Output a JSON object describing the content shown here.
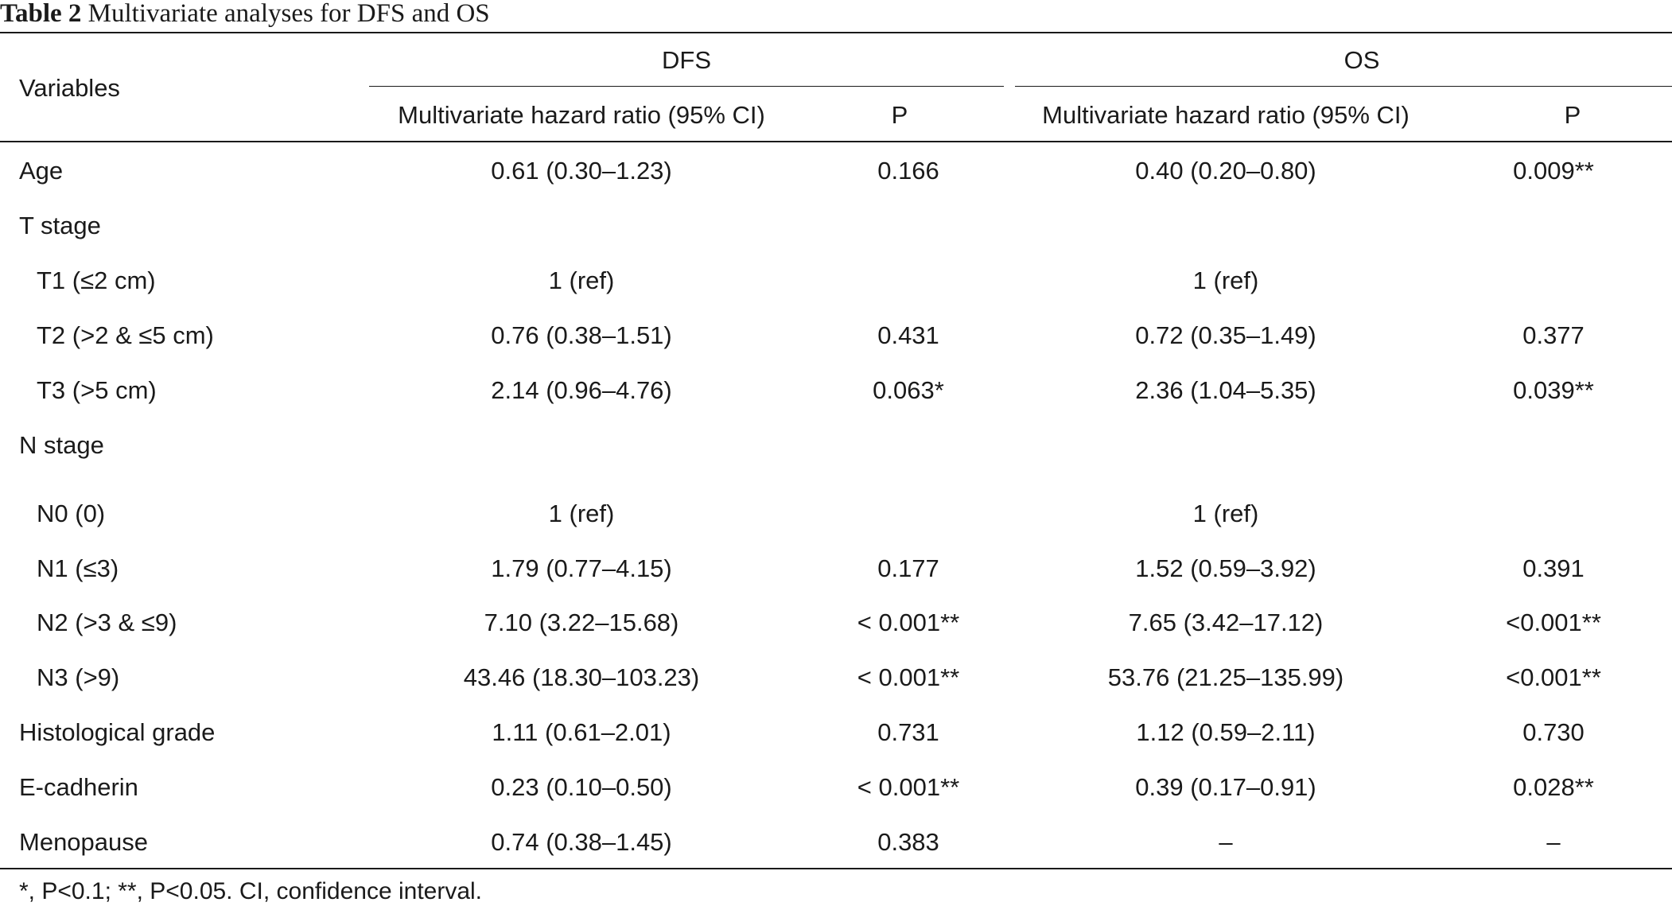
{
  "caption": {
    "label": "Table 2",
    "title": "Multivariate analyses for DFS and OS"
  },
  "header": {
    "variables": "Variables",
    "dfs": "DFS",
    "os": "OS",
    "dfs_hr": "Multivariate hazard ratio (95% CI)",
    "dfs_p": "P",
    "os_hr": "Multivariate hazard ratio (95% CI)",
    "os_p": "P"
  },
  "rows": [
    {
      "label": "Age",
      "indent": false,
      "dfs_hr": "0.61 (0.30–1.23)",
      "dfs_p": "0.166",
      "os_hr": "0.40 (0.20–0.80)",
      "os_p": "0.009**"
    },
    {
      "label": "T stage",
      "indent": false,
      "dfs_hr": "",
      "dfs_p": "",
      "os_hr": "",
      "os_p": ""
    },
    {
      "label": "T1 (≤2 cm)",
      "indent": true,
      "dfs_hr": "1 (ref)",
      "dfs_p": "",
      "os_hr": "1 (ref)",
      "os_p": ""
    },
    {
      "label": "T2 (>2 & ≤5 cm)",
      "indent": true,
      "dfs_hr": "0.76 (0.38–1.51)",
      "dfs_p": "0.431",
      "os_hr": "0.72 (0.35–1.49)",
      "os_p": "0.377"
    },
    {
      "label": "T3 (>5 cm)",
      "indent": true,
      "dfs_hr": "2.14 (0.96–4.76)",
      "dfs_p": "0.063*",
      "os_hr": "2.36 (1.04–5.35)",
      "os_p": "0.039**"
    },
    {
      "label": "N stage",
      "indent": false,
      "dfs_hr": "",
      "dfs_p": "",
      "os_hr": "",
      "os_p": ""
    },
    {
      "label": "N0 (0)",
      "indent": true,
      "dfs_hr": "1 (ref)",
      "dfs_p": "",
      "os_hr": "1 (ref)",
      "os_p": ""
    },
    {
      "label": "N1 (≤3)",
      "indent": true,
      "dfs_hr": "1.79 (0.77–4.15)",
      "dfs_p": "0.177",
      "os_hr": "1.52 (0.59–3.92)",
      "os_p": "0.391"
    },
    {
      "label": "N2 (>3 & ≤9)",
      "indent": true,
      "dfs_hr": "7.10 (3.22–15.68)",
      "dfs_p": "< 0.001**",
      "os_hr": "7.65 (3.42–17.12)",
      "os_p": "<0.001**"
    },
    {
      "label": "N3 (>9)",
      "indent": true,
      "dfs_hr": "43.46 (18.30–103.23)",
      "dfs_p": "< 0.001**",
      "os_hr": "53.76 (21.25–135.99)",
      "os_p": "<0.001**"
    },
    {
      "label": "Histological grade",
      "indent": false,
      "dfs_hr": "1.11 (0.61–2.01)",
      "dfs_p": "0.731",
      "os_hr": "1.12 (0.59–2.11)",
      "os_p": "0.730"
    },
    {
      "label": "E-cadherin",
      "indent": false,
      "dfs_hr": "0.23 (0.10–0.50)",
      "dfs_p": "< 0.001**",
      "os_hr": "0.39 (0.17–0.91)",
      "os_p": "0.028**"
    },
    {
      "label": "Menopause",
      "indent": false,
      "dfs_hr": "0.74 (0.38–1.45)",
      "dfs_p": "0.383",
      "os_hr": "–",
      "os_p": "–"
    }
  ],
  "footnote": "*, P<0.1; **, P<0.05. CI, confidence interval."
}
